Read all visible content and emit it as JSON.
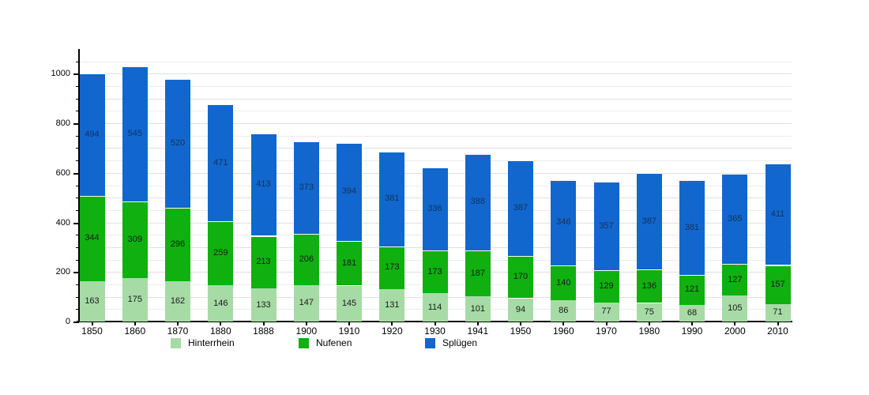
{
  "chart_data": {
    "type": "bar",
    "stacked": true,
    "title": "",
    "xlabel": "",
    "ylabel": "",
    "categories": [
      "1850",
      "1860",
      "1870",
      "1880",
      "1888",
      "1900",
      "1910",
      "1920",
      "1930",
      "1941",
      "1950",
      "1960",
      "1970",
      "1980",
      "1990",
      "2000",
      "2010"
    ],
    "series": [
      {
        "name": "Hinterrhein",
        "color": "#a6dba6",
        "label_color": "#1a1a1a",
        "values": [
          163,
          175,
          162,
          146,
          133,
          147,
          145,
          131,
          114,
          101,
          94,
          86,
          77,
          75,
          68,
          105,
          71
        ]
      },
      {
        "name": "Nufenen",
        "color": "#0fb00f",
        "label_color": "#1a1a1a",
        "values": [
          344,
          309,
          296,
          259,
          213,
          206,
          181,
          173,
          173,
          187,
          170,
          140,
          129,
          136,
          121,
          127,
          157
        ]
      },
      {
        "name": "Splügen",
        "color": "#1167cd",
        "label_color": "#14315e",
        "values": [
          494,
          545,
          520,
          471,
          413,
          373,
          394,
          381,
          336,
          388,
          387,
          346,
          357,
          387,
          381,
          365,
          411
        ]
      }
    ],
    "ylim": [
      0,
      1100
    ],
    "y_major_ticks": [
      0,
      200,
      400,
      600,
      800,
      1000
    ],
    "minor_tick_step": 50,
    "grid": true,
    "legend_position": "bottom"
  }
}
